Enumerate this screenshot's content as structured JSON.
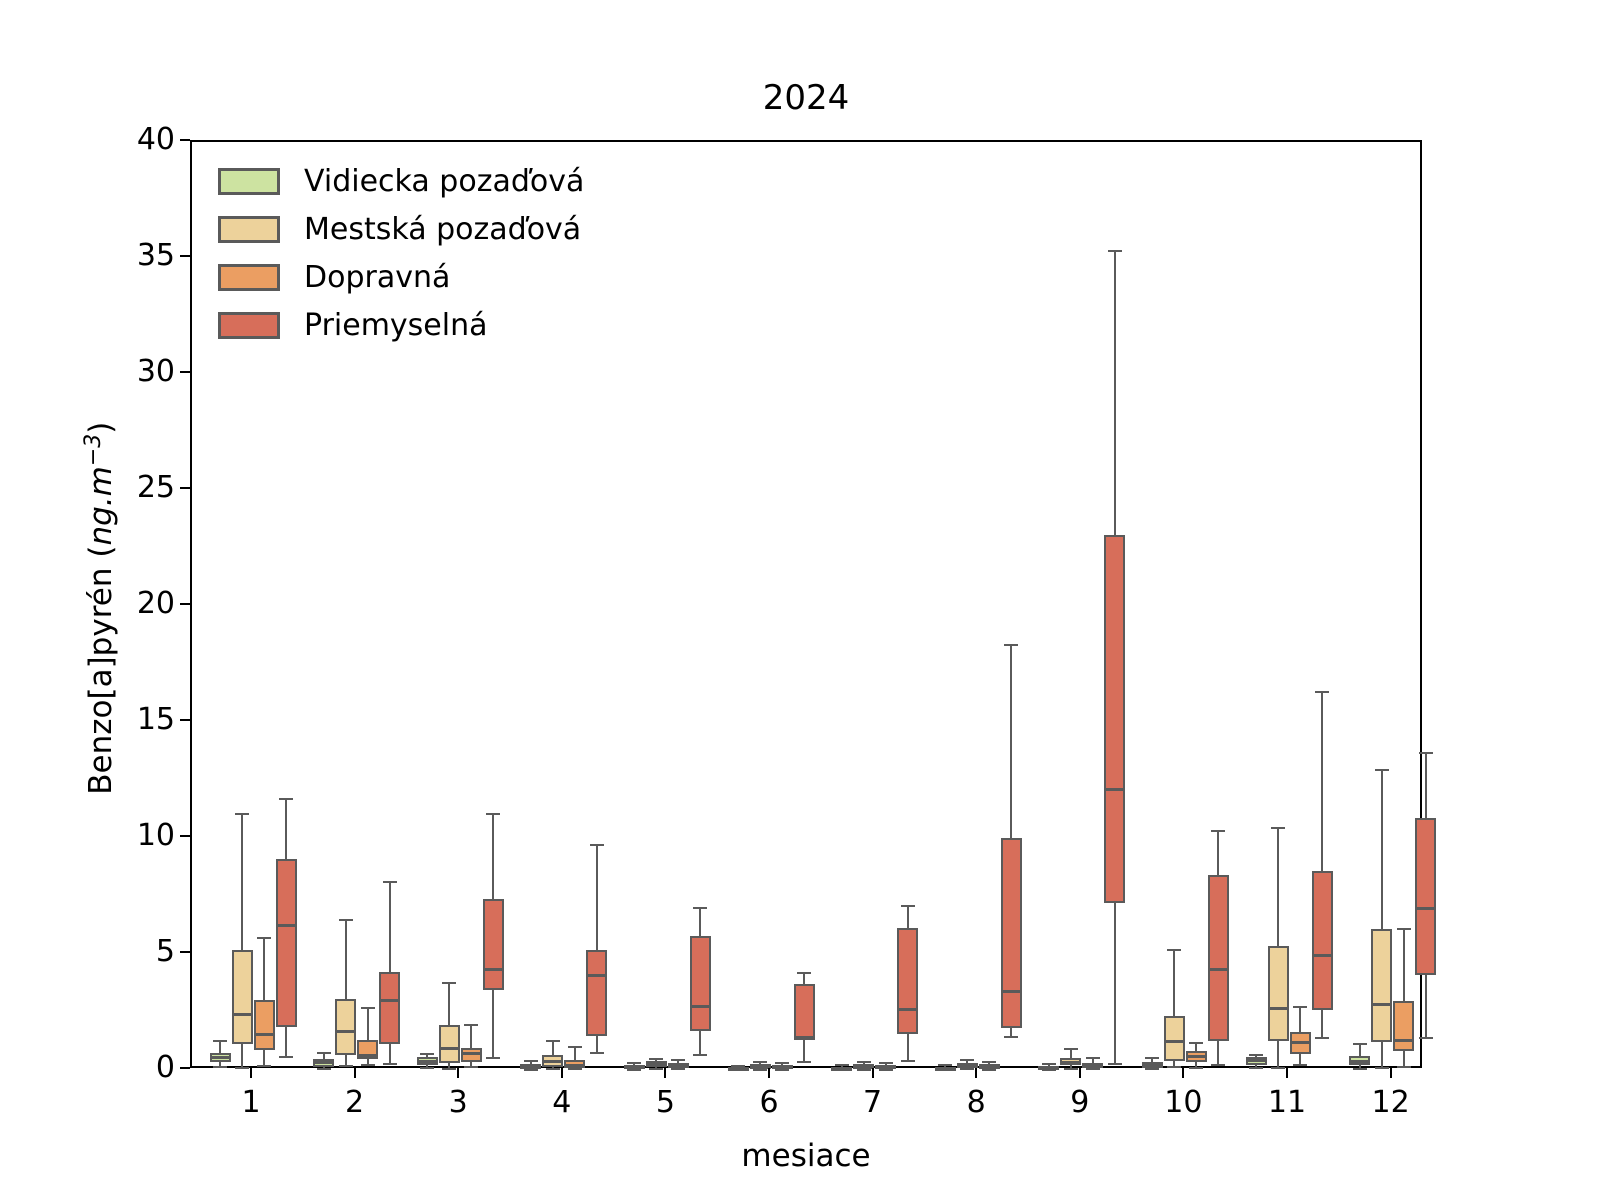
{
  "title": "2024",
  "xlabel": "mesiace",
  "ylabel": "Benzo[a]pyrén (ng.m⁻³)",
  "ylabel_parts": {
    "prefix": "Benzo[a]pyrén (",
    "italic": "ng.m",
    "sup": "−3",
    "suffix": ")"
  },
  "colors": {
    "vidiecka": "#cde3a1",
    "mestska": "#edd29b",
    "dopravna": "#eb9e62",
    "priemyselna": "#d76e5a",
    "box_edge": "#5a5a5a",
    "axis": "#000000"
  },
  "chart_data": {
    "type": "boxplot",
    "title": "2024",
    "xlabel": "mesiace",
    "ylabel": "Benzo[a]pyrén (ng.m−3)",
    "x": [
      1,
      2,
      3,
      4,
      5,
      6,
      7,
      8,
      9,
      10,
      11,
      12
    ],
    "ylim": [
      0,
      40
    ],
    "yticks": [
      0,
      5,
      10,
      15,
      20,
      25,
      30,
      35,
      40
    ],
    "grid": false,
    "legend_position": "upper left",
    "stats_format": [
      "whisker_low",
      "q1",
      "median",
      "q3",
      "whisker_high"
    ],
    "series": [
      {
        "name": "Vidiecka pozaďová",
        "color": "#cde3a1",
        "boxes": [
          [
            0.13,
            0.34,
            0.56,
            0.75,
            1.25
          ],
          [
            0.06,
            0.15,
            0.31,
            0.49,
            0.73
          ],
          [
            0.1,
            0.2,
            0.35,
            0.56,
            0.7
          ],
          [
            0.02,
            0.06,
            0.12,
            0.25,
            0.4
          ],
          [
            0.02,
            0.08,
            0.15,
            0.22,
            0.32
          ],
          [
            0.01,
            0.03,
            0.07,
            0.12,
            0.18
          ],
          [
            0.01,
            0.04,
            0.08,
            0.13,
            0.2
          ],
          [
            0.01,
            0.04,
            0.08,
            0.15,
            0.22
          ],
          [
            0.02,
            0.05,
            0.1,
            0.18,
            0.26
          ],
          [
            0.03,
            0.1,
            0.2,
            0.35,
            0.5
          ],
          [
            0.1,
            0.2,
            0.4,
            0.55,
            0.65
          ],
          [
            0.05,
            0.2,
            0.35,
            0.6,
            1.12
          ]
        ]
      },
      {
        "name": "Mestská pozaďová",
        "color": "#edd29b",
        "boxes": [
          [
            0.1,
            1.13,
            2.38,
            5.17,
            11.05
          ],
          [
            0.16,
            0.65,
            1.64,
            3.07,
            6.45
          ],
          [
            0.05,
            0.28,
            0.92,
            1.95,
            3.75
          ],
          [
            0.05,
            0.13,
            0.38,
            0.66,
            1.24
          ],
          [
            0.05,
            0.13,
            0.22,
            0.38,
            0.48
          ],
          [
            0.02,
            0.05,
            0.15,
            0.28,
            0.36
          ],
          [
            0.02,
            0.06,
            0.13,
            0.26,
            0.36
          ],
          [
            0.03,
            0.08,
            0.16,
            0.3,
            0.42
          ],
          [
            0.06,
            0.21,
            0.33,
            0.5,
            0.9
          ],
          [
            0.13,
            0.38,
            1.21,
            2.31,
            5.19
          ],
          [
            0.1,
            1.27,
            2.66,
            5.36,
            10.42
          ],
          [
            0.1,
            1.21,
            2.82,
            6.09,
            12.95
          ]
        ]
      },
      {
        "name": "Dopravná",
        "color": "#eb9e62",
        "boxes": [
          [
            0.18,
            0.86,
            1.51,
            3.02,
            5.69
          ],
          [
            0.2,
            0.49,
            0.63,
            1.31,
            2.67
          ],
          [
            0.15,
            0.34,
            0.73,
            0.95,
            1.93
          ],
          [
            0.03,
            0.08,
            0.2,
            0.42,
            0.99
          ],
          [
            0.03,
            0.1,
            0.18,
            0.3,
            0.42
          ],
          [
            0.02,
            0.05,
            0.12,
            0.22,
            0.31
          ],
          [
            0.02,
            0.05,
            0.1,
            0.2,
            0.3
          ],
          [
            0.02,
            0.06,
            0.12,
            0.25,
            0.35
          ],
          [
            0.05,
            0.1,
            0.2,
            0.31,
            0.5
          ],
          [
            0.1,
            0.34,
            0.59,
            0.81,
            1.16
          ],
          [
            0.23,
            0.7,
            1.18,
            1.64,
            2.72
          ],
          [
            0.14,
            0.81,
            1.28,
            2.96,
            6.07
          ]
        ]
      },
      {
        "name": "Priemyselná",
        "color": "#d76e5a",
        "boxes": [
          [
            0.56,
            1.85,
            6.21,
            9.08,
            11.69
          ],
          [
            0.27,
            1.13,
            3.0,
            4.22,
            8.1
          ],
          [
            0.53,
            3.46,
            4.34,
            7.38,
            11.02
          ],
          [
            0.75,
            1.45,
            4.09,
            5.17,
            9.69
          ],
          [
            0.66,
            1.67,
            2.75,
            5.76,
            6.98
          ],
          [
            0.34,
            1.29,
            1.42,
            3.69,
            4.19
          ],
          [
            0.38,
            1.56,
            2.62,
            6.12,
            7.07
          ],
          [
            1.42,
            1.81,
            3.39,
            10.0,
            18.31
          ],
          [
            0.27,
            7.2,
            12.08,
            23.07,
            35.29
          ],
          [
            0.2,
            1.24,
            4.32,
            8.42,
            10.29
          ],
          [
            1.38,
            2.57,
            4.94,
            8.56,
            16.3
          ],
          [
            1.4,
            4.1,
            6.98,
            10.85,
            13.65
          ]
        ]
      }
    ]
  }
}
